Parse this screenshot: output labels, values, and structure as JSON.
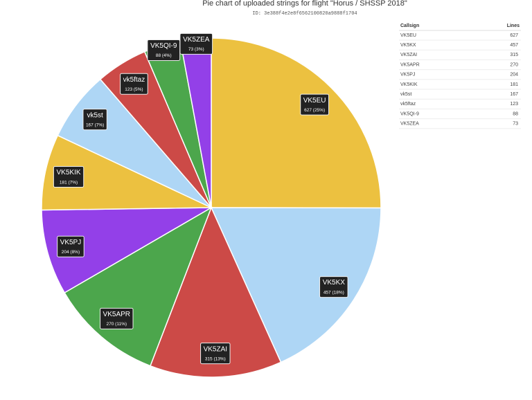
{
  "chart_data": {
    "type": "pie",
    "title": "Pie chart of uploaded strings for flight \"Horus / SHSSP 2018\"",
    "subtitle": "ID: 3e388f4e2e8f6562100820a9888f1704",
    "categories": [
      "VK5EU",
      "VK5KX",
      "VK5ZAI",
      "VK5APR",
      "VK5PJ",
      "VK5KIK",
      "vk5st",
      "vk5ftaz",
      "VK5QI-9",
      "VK5ZEA"
    ],
    "values": [
      627,
      457,
      315,
      270,
      204,
      181,
      167,
      123,
      88,
      73
    ],
    "value_labels": [
      "627 (25%)",
      "457 (18%)",
      "315 (13%)",
      "270 (11%)",
      "204 (8%)",
      "181 (7%)",
      "167 (7%)",
      "123 (5%)",
      "88 (4%)",
      "73 (3%)"
    ],
    "colors": [
      "#ecc140",
      "#aed6f5",
      "#cc4a47",
      "#4ca64c",
      "#9340e8",
      "#ecc140",
      "#aed6f5",
      "#cc4a47",
      "#4ca64c",
      "#9340e8"
    ],
    "table_columns": [
      "Callsign",
      "Lines"
    ]
  }
}
